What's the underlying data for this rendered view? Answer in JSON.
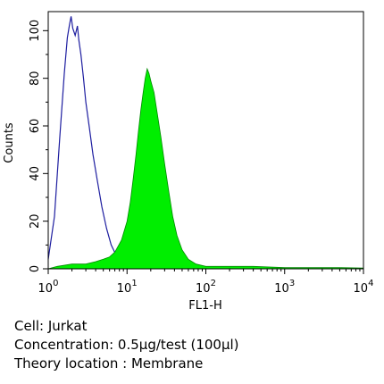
{
  "chart_data": {
    "type": "area",
    "xlabel": "FL1-H",
    "ylabel": "Counts",
    "xscale": "log",
    "xlim": [
      1,
      10000
    ],
    "ylim": [
      0,
      108
    ],
    "grid": false,
    "xticks": [
      {
        "value": 1,
        "base": "10",
        "exp": "0"
      },
      {
        "value": 10,
        "base": "10",
        "exp": "1"
      },
      {
        "value": 100,
        "base": "10",
        "exp": "2"
      },
      {
        "value": 1000,
        "base": "10",
        "exp": "3"
      },
      {
        "value": 10000,
        "base": "10",
        "exp": "4"
      }
    ],
    "yticks": [
      {
        "value": 0,
        "label": "0"
      },
      {
        "value": 20,
        "label": "20"
      },
      {
        "value": 40,
        "label": "40"
      },
      {
        "value": 60,
        "label": "60"
      },
      {
        "value": 80,
        "label": "80"
      },
      {
        "value": 100,
        "label": "100"
      }
    ],
    "series": [
      {
        "style": "outline",
        "color": "#1e1ea0",
        "points": [
          [
            1.0,
            4
          ],
          [
            1.2,
            22
          ],
          [
            1.4,
            55
          ],
          [
            1.6,
            82
          ],
          [
            1.75,
            97
          ],
          [
            1.85,
            102
          ],
          [
            1.95,
            106
          ],
          [
            2.05,
            101
          ],
          [
            2.2,
            98
          ],
          [
            2.35,
            102
          ],
          [
            2.45,
            96
          ],
          [
            2.6,
            90
          ],
          [
            2.8,
            80
          ],
          [
            3.0,
            70
          ],
          [
            3.3,
            60
          ],
          [
            3.7,
            48
          ],
          [
            4.2,
            37
          ],
          [
            4.8,
            26
          ],
          [
            5.5,
            17
          ],
          [
            6.3,
            10
          ],
          [
            7.2,
            6
          ],
          [
            8.0,
            3
          ],
          [
            9.0,
            1
          ],
          [
            10.0,
            0
          ]
        ]
      },
      {
        "style": "filled",
        "color": "#00ee00",
        "points": [
          [
            1.0,
            0
          ],
          [
            1.3,
            1
          ],
          [
            2.0,
            2
          ],
          [
            3.0,
            2
          ],
          [
            4.0,
            3
          ],
          [
            5.0,
            4
          ],
          [
            6.0,
            5
          ],
          [
            7.0,
            7
          ],
          [
            8.5,
            12
          ],
          [
            10.0,
            20
          ],
          [
            11.0,
            28
          ],
          [
            12.0,
            38
          ],
          [
            13.0,
            48
          ],
          [
            14.0,
            58
          ],
          [
            15.0,
            67
          ],
          [
            16.0,
            74
          ],
          [
            17.0,
            80
          ],
          [
            18.0,
            84
          ],
          [
            19.0,
            82
          ],
          [
            20.0,
            79
          ],
          [
            22.0,
            74
          ],
          [
            24.0,
            66
          ],
          [
            27.0,
            55
          ],
          [
            30.0,
            44
          ],
          [
            34.0,
            32
          ],
          [
            38.0,
            22
          ],
          [
            43.0,
            14
          ],
          [
            50.0,
            8
          ],
          [
            60.0,
            4
          ],
          [
            75.0,
            2
          ],
          [
            100.0,
            1
          ],
          [
            200.0,
            1
          ],
          [
            400.0,
            1
          ],
          [
            1000.0,
            0.5
          ],
          [
            5000.0,
            0.5
          ],
          [
            10000.0,
            0.3
          ]
        ]
      }
    ]
  },
  "captions": {
    "cell": "Cell: Jurkat",
    "concentration": "Concentration: 0.5μg/test (100μl)",
    "location": "Theory location : Membrane"
  }
}
